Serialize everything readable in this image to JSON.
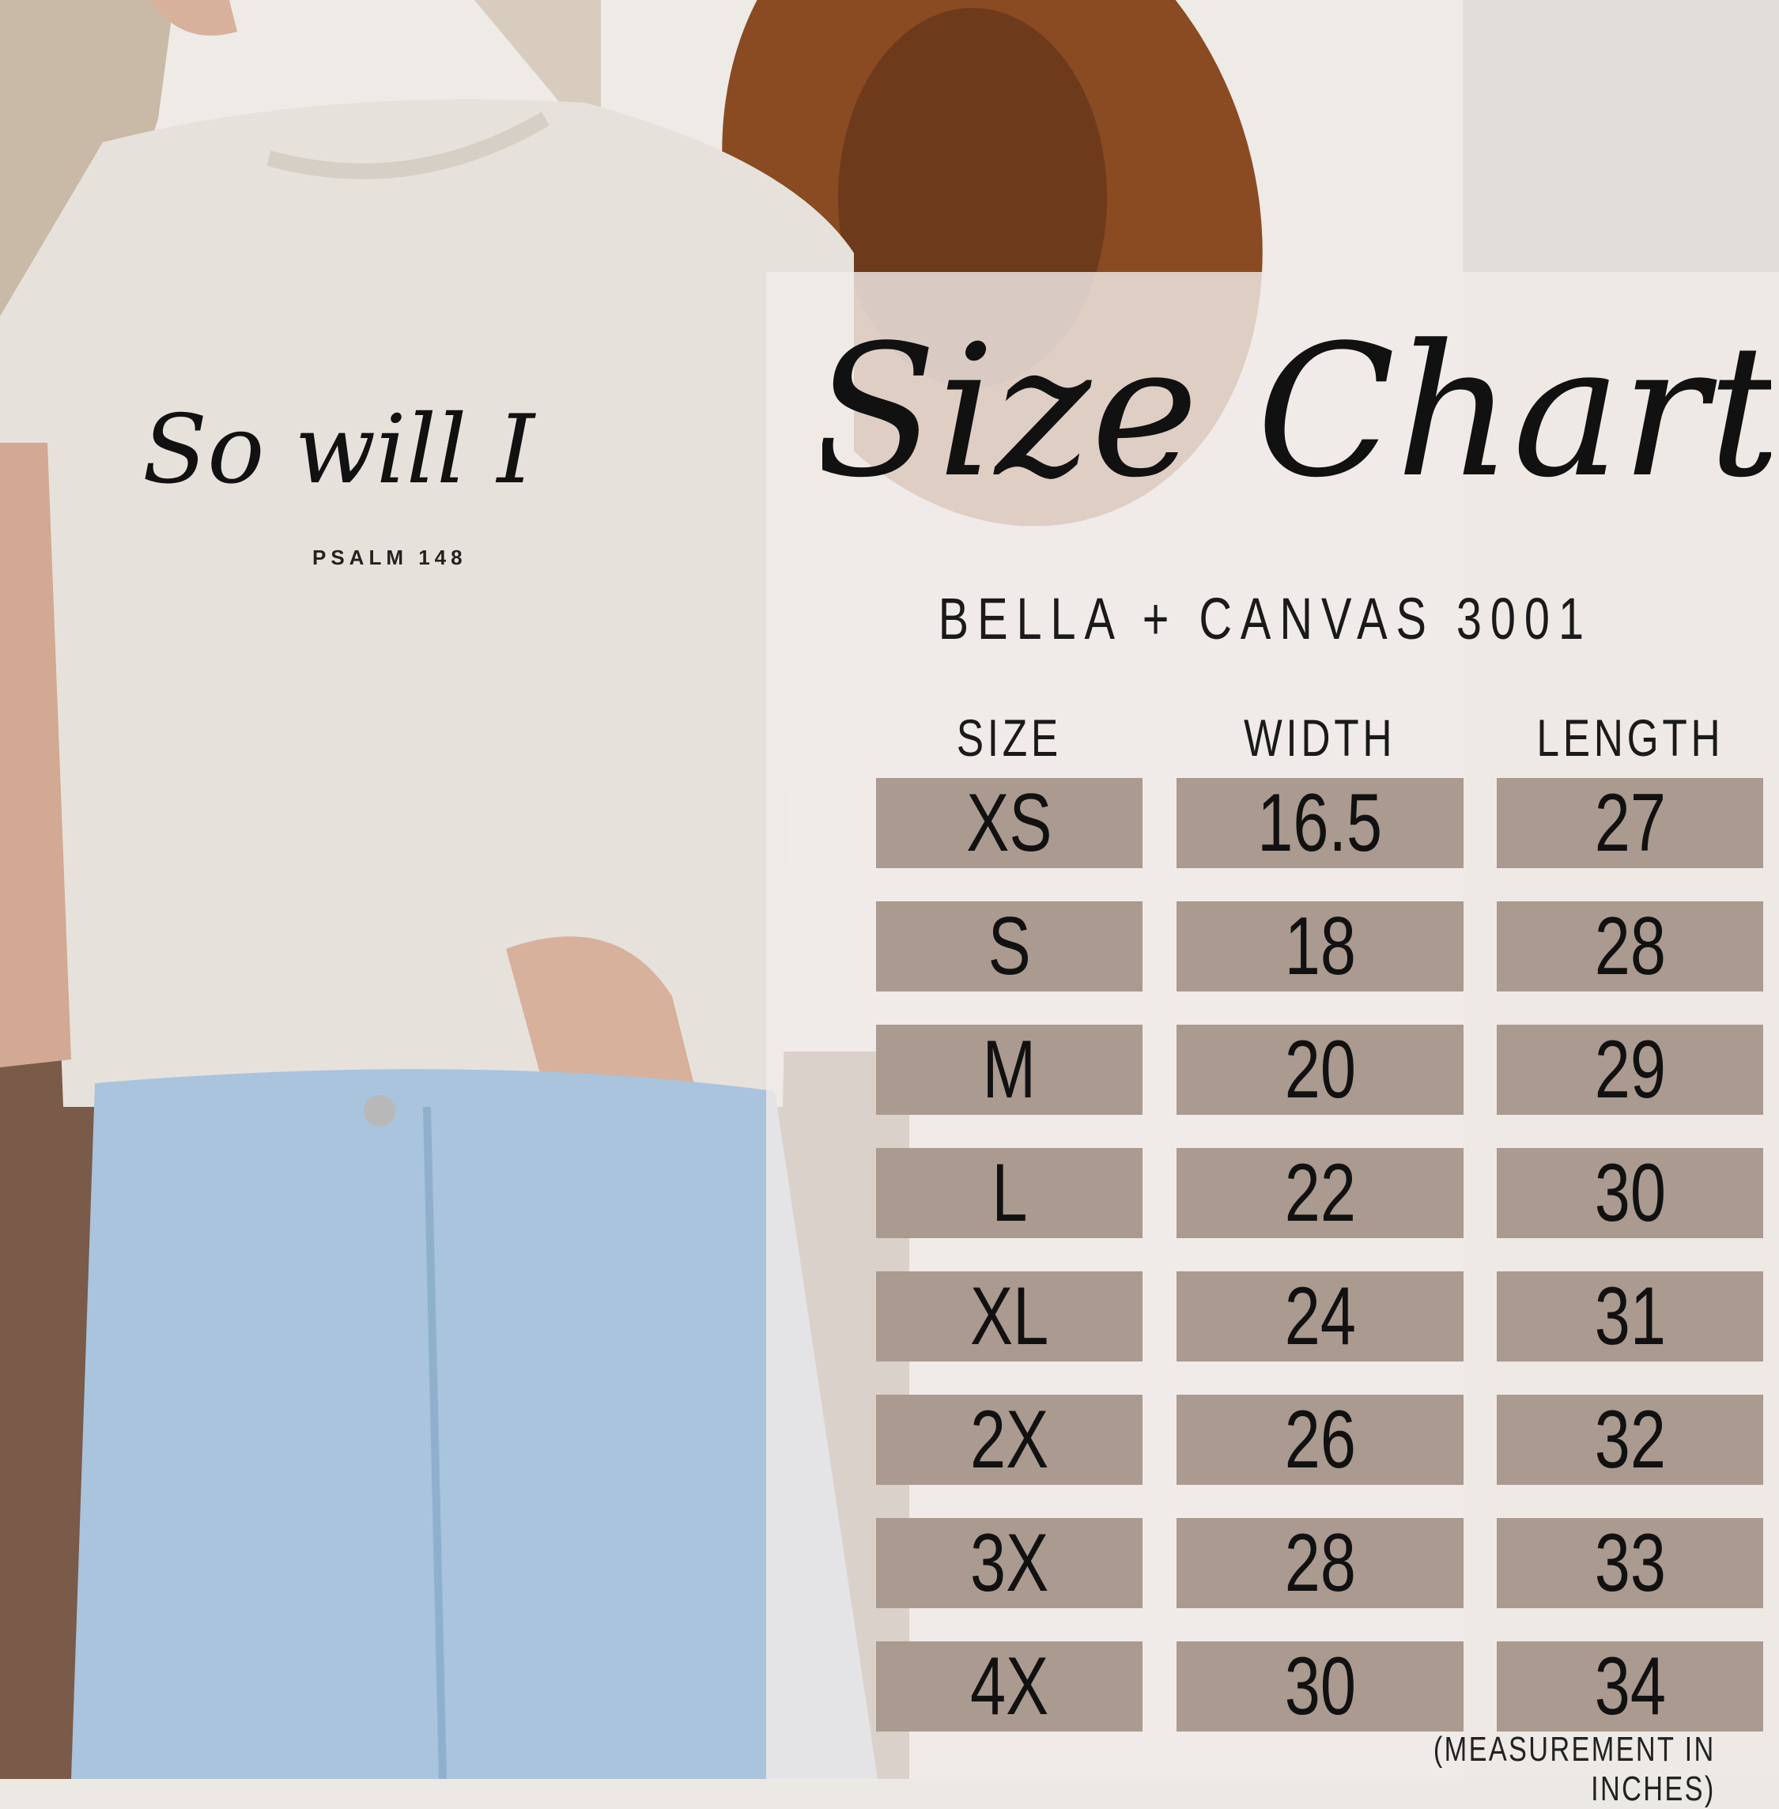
{
  "shirt": {
    "script_text": "So will I",
    "verse": "PSALM 148"
  },
  "chart": {
    "title": "Size Chart",
    "subtitle": "BELLA + CANVAS 3001",
    "headers": [
      "SIZE",
      "WIDTH",
      "LENGTH"
    ],
    "rows": [
      {
        "size": "XS",
        "width": "16.5",
        "length": "27"
      },
      {
        "size": "S",
        "width": "18",
        "length": "28"
      },
      {
        "size": "M",
        "width": "20",
        "length": "29"
      },
      {
        "size": "L",
        "width": "22",
        "length": "30"
      },
      {
        "size": "XL",
        "width": "24",
        "length": "31"
      },
      {
        "size": "2X",
        "width": "26",
        "length": "32"
      },
      {
        "size": "3X",
        "width": "28",
        "length": "33"
      },
      {
        "size": "4X",
        "width": "30",
        "length": "34"
      }
    ],
    "note": "(MEASUREMENT IN INCHES)"
  },
  "colors": {
    "cell": "#aa9a8f",
    "panel": "#f0ece8",
    "text": "#111111",
    "hat": "#8a4a22",
    "denim": "#a9c4dc",
    "shirt": "#e8e4dd"
  }
}
